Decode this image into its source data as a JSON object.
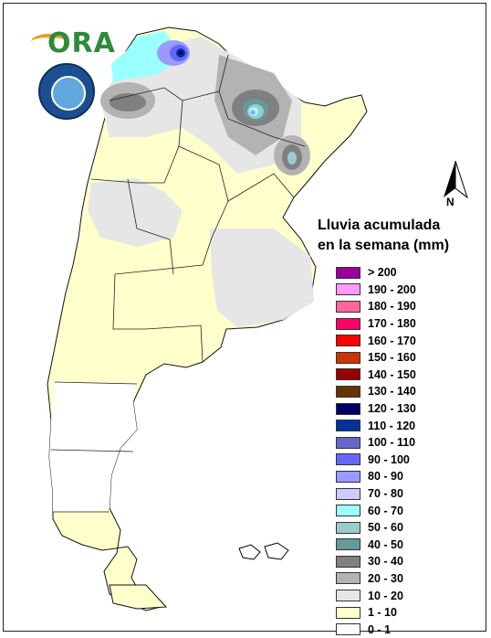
{
  "legend": {
    "title_line1": "Lluvia acumulada",
    "title_line2": "en la semana (mm)",
    "items": [
      {
        "label": "> 200",
        "color": "#990099"
      },
      {
        "label": "190 - 200",
        "color": "#ff99ff"
      },
      {
        "label": "180 - 190",
        "color": "#ff6699"
      },
      {
        "label": "170 - 180",
        "color": "#ff0066"
      },
      {
        "label": "160 - 170",
        "color": "#ff0000"
      },
      {
        "label": "150 - 160",
        "color": "#cc3300"
      },
      {
        "label": "140 - 150",
        "color": "#990000"
      },
      {
        "label": "130 - 140",
        "color": "#663300"
      },
      {
        "label": "120 - 130",
        "color": "#000066"
      },
      {
        "label": "110 - 120",
        "color": "#003399"
      },
      {
        "label": "100 - 110",
        "color": "#6666cc"
      },
      {
        "label": "90 - 100",
        "color": "#6666ff"
      },
      {
        "label": "80 - 90",
        "color": "#9999ff"
      },
      {
        "label": "70 - 80",
        "color": "#ccccff"
      },
      {
        "label": "60 - 70",
        "color": "#99ffff"
      },
      {
        "label": "50 - 60",
        "color": "#99cccc"
      },
      {
        "label": "40 - 50",
        "color": "#669999"
      },
      {
        "label": "30 - 40",
        "color": "#808080"
      },
      {
        "label": "20 - 30",
        "color": "#b3b3b3"
      },
      {
        "label": "10 - 20",
        "color": "#e6e6e6"
      },
      {
        "label": "1 - 10",
        "color": "#ffffcc"
      },
      {
        "label": "0 - 1",
        "color": "#ffffff"
      }
    ]
  },
  "north_arrow": {
    "label": "N",
    "icon": "north-arrow-icon"
  },
  "logo": {
    "text": "ORA",
    "icon": "ora-logo-icon"
  },
  "seal": {
    "icon": "smn-seal-icon"
  }
}
